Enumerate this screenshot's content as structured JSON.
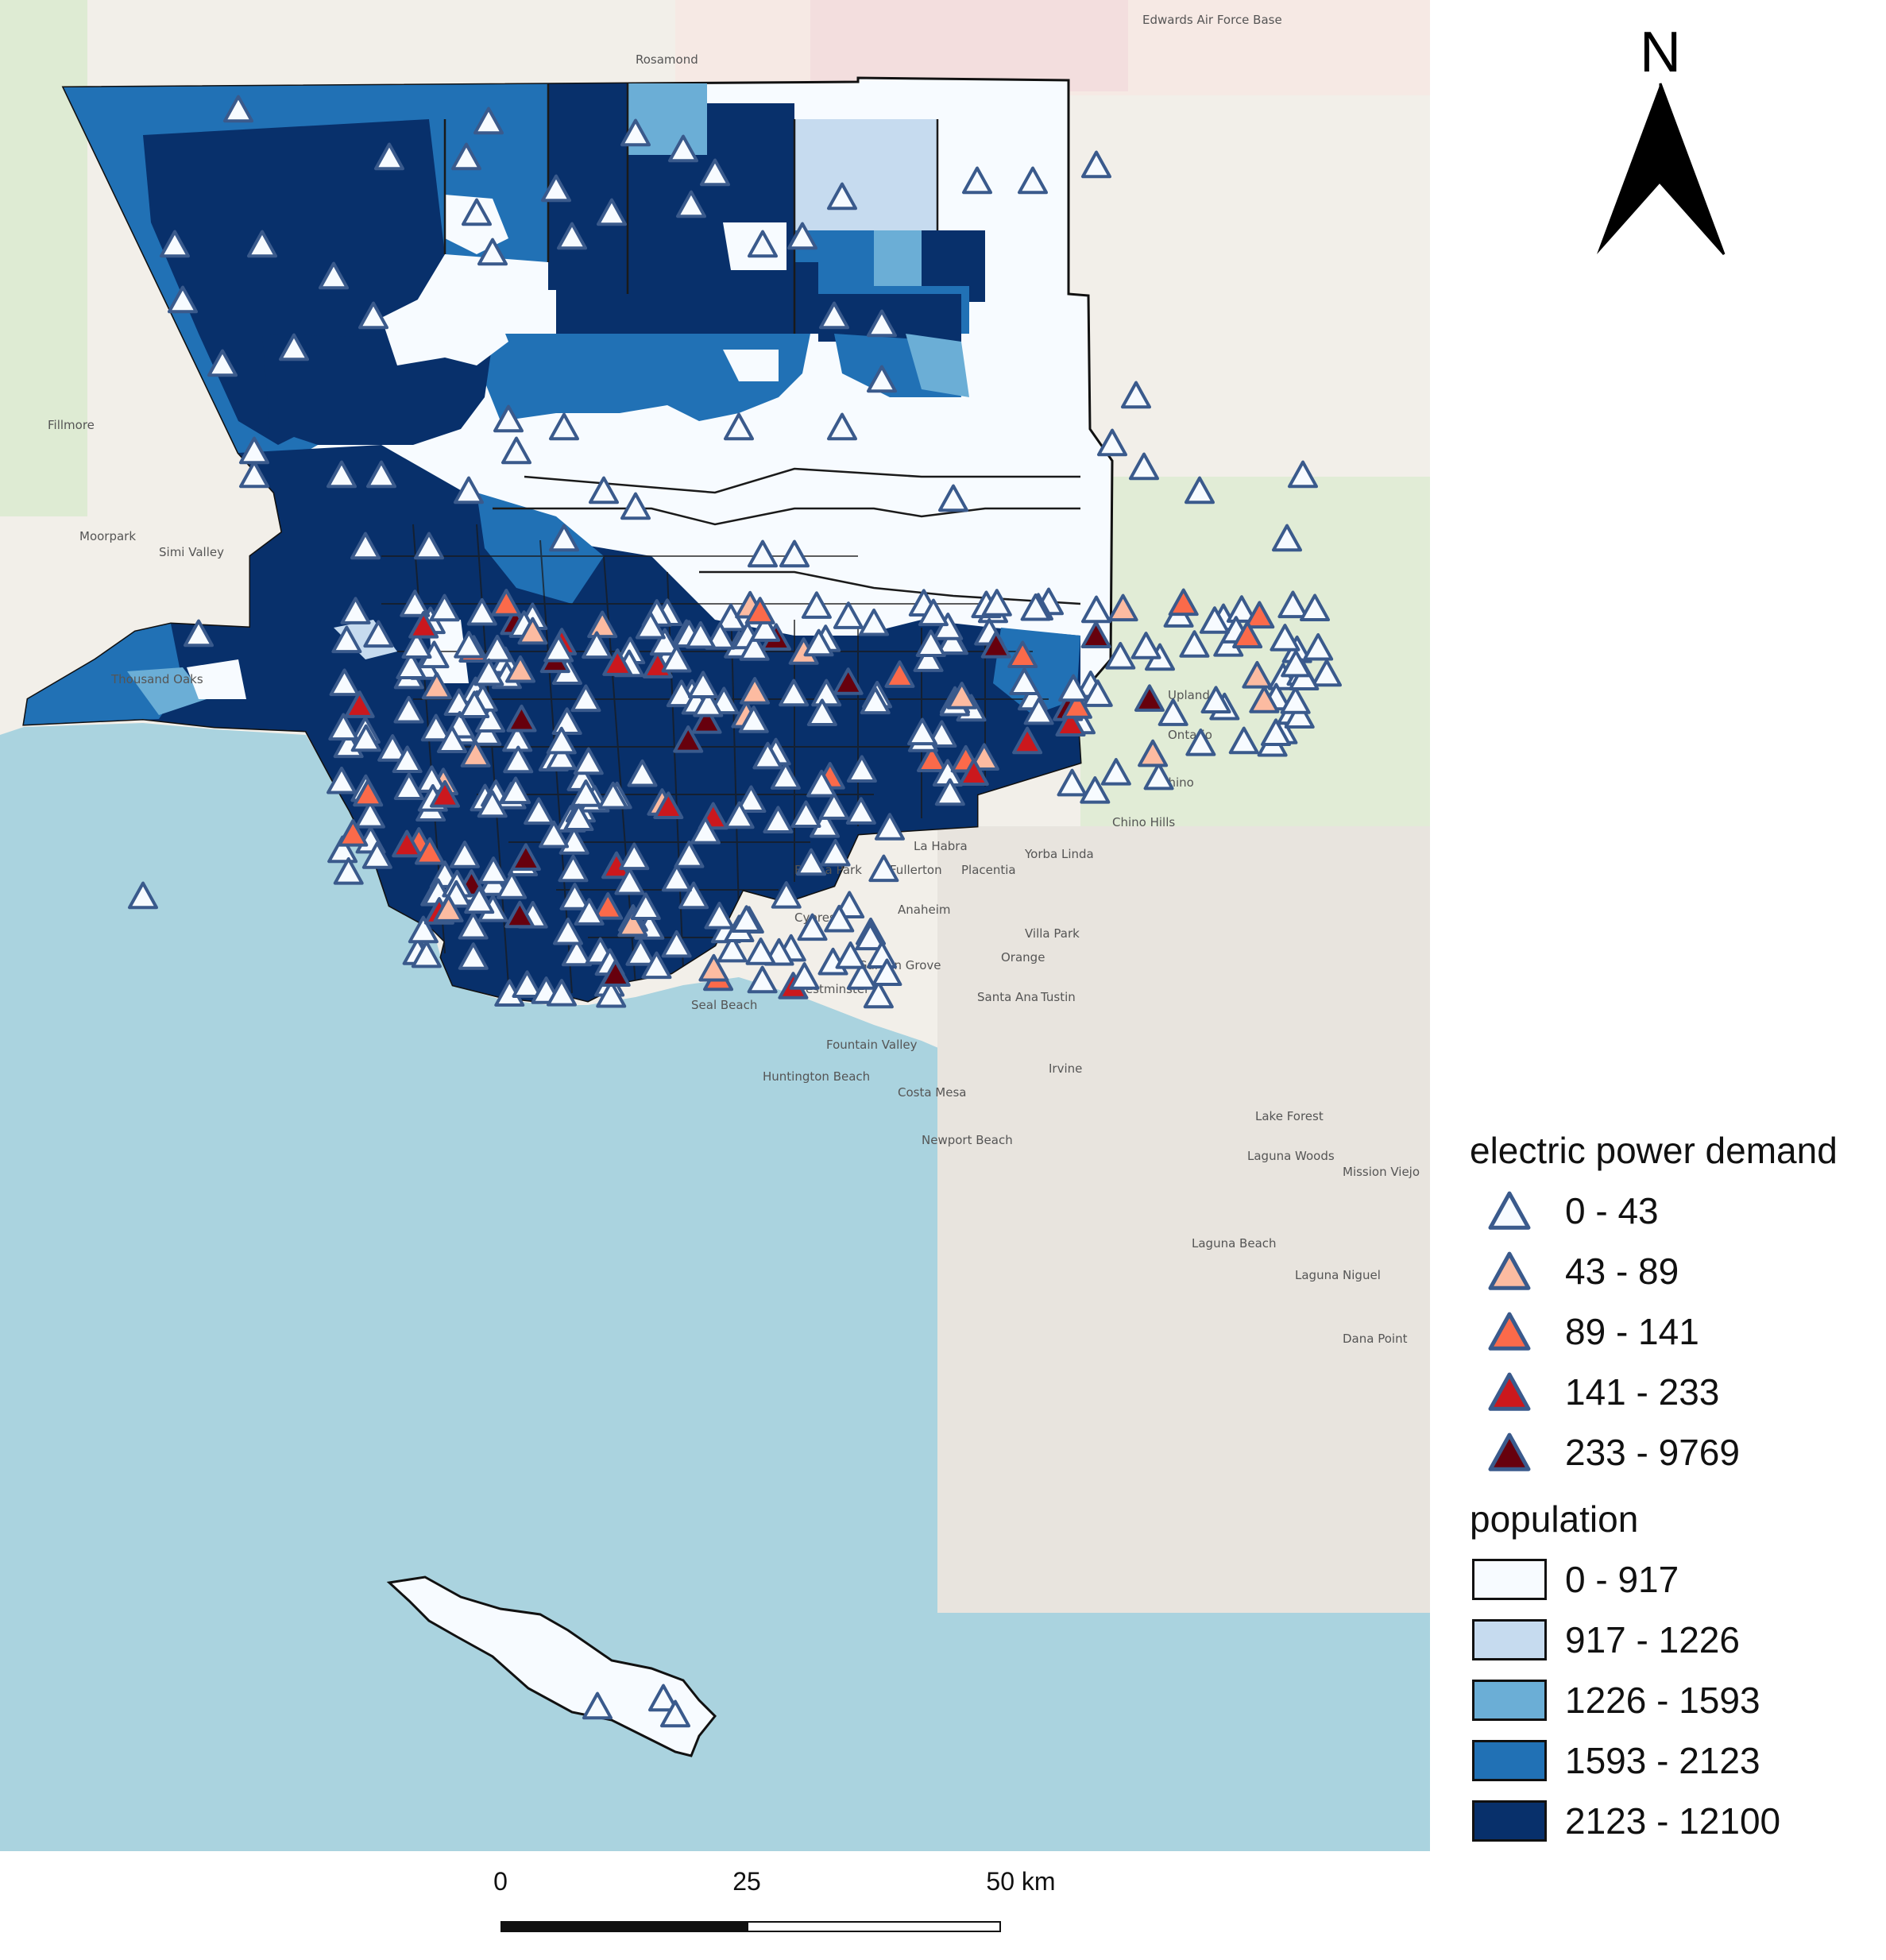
{
  "legend": {
    "demand_title": "electric power demand",
    "demand_classes": [
      {
        "label": "0 - 43",
        "color": "#f7fbff"
      },
      {
        "label": "43 - 89",
        "color": "#fcbba1"
      },
      {
        "label": "89 - 141",
        "color": "#fb6a4a"
      },
      {
        "label": "141 - 233",
        "color": "#cb181d"
      },
      {
        "label": "233 - 9769",
        "color": "#67000d"
      }
    ],
    "population_title": "population",
    "population_classes": [
      {
        "label": "0 - 917",
        "color": "#f7fbff"
      },
      {
        "label": "917 - 1226",
        "color": "#c6dbef"
      },
      {
        "label": "1226 - 1593",
        "color": "#6baed6"
      },
      {
        "label": "1593 - 2123",
        "color": "#2171b5"
      },
      {
        "label": "2123 - 12100",
        "color": "#08306b"
      }
    ]
  },
  "north_arrow": {
    "label": "N",
    "icon": "north-arrow-icon"
  },
  "scale_bar": {
    "ticks": [
      "0",
      "25",
      "50 km"
    ]
  },
  "basemap_labels": [
    "Edwards Air Force Base",
    "Rosamond",
    "Simi Valley",
    "Thousand Oaks",
    "Moorpark",
    "Fillmore",
    "Upland",
    "Ontario",
    "Chino",
    "Chino Hills",
    "La Habra",
    "Fullerton",
    "Placentia",
    "Anaheim",
    "Yorba Linda",
    "Garden Grove",
    "Orange",
    "Villa Park",
    "Santa Ana",
    "Tustin",
    "Westminster",
    "Fountain Valley",
    "Huntington Beach",
    "Costa Mesa",
    "Irvine",
    "Newport Beach",
    "Lake Forest",
    "Laguna Woods",
    "Mission Viejo",
    "Laguna Beach",
    "Laguna Niguel",
    "Dana Point",
    "Seal Beach",
    "Buena Park",
    "Cypress"
  ],
  "colors": {
    "ocean": "#aad3df",
    "land": "#f2efe9",
    "boundary": "#1a1a1a",
    "triangle_outline": "#3a5a8c"
  }
}
